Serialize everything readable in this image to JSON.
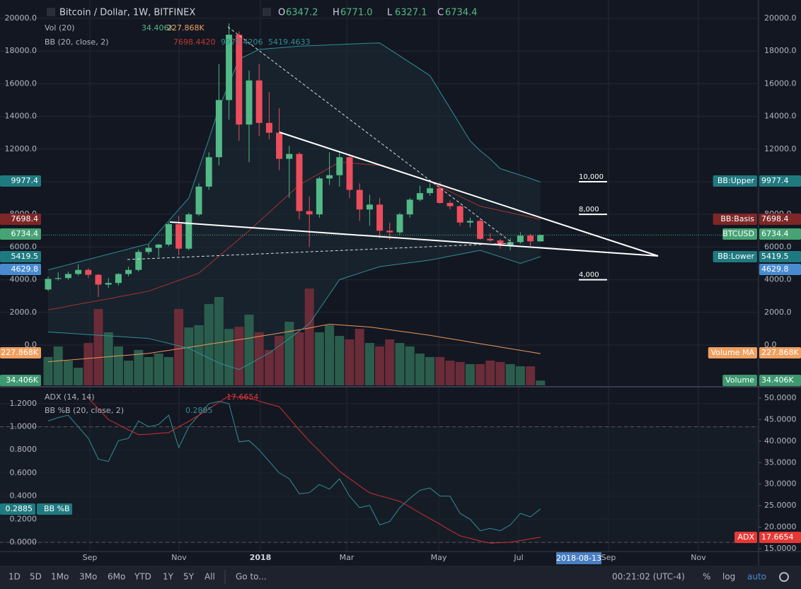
{
  "header": {
    "symbol": "Bitcoin / Dollar, 1W, BITFINEX",
    "ohlc": [
      {
        "key": "O",
        "value": "6347.2"
      },
      {
        "key": "H",
        "value": "6771.0"
      },
      {
        "key": "L",
        "value": "6327.1"
      },
      {
        "key": "C",
        "value": "6734.4"
      }
    ],
    "vol_legend": {
      "name": "Vol (20)",
      "values": [
        "34.406K",
        "227.868K"
      ]
    },
    "bb_legend": {
      "name": "BB (20, close, 2)",
      "values": [
        "7698.4420",
        "9977.4206",
        "5419.4633"
      ]
    }
  },
  "price_pane": {
    "ylim": [
      -2470,
      20780
    ],
    "yticks": [
      {
        "value": 0,
        "label": "0.0"
      },
      {
        "value": 2000,
        "label": "2000.0"
      },
      {
        "value": 4000,
        "label": "4000.0"
      },
      {
        "value": 6000,
        "label": "6000.0"
      },
      {
        "value": 8000,
        "label": "8000.0"
      },
      {
        "value": 10000,
        "label": "10000.0"
      },
      {
        "value": 12000,
        "label": "12000.0"
      },
      {
        "value": 14000,
        "label": "14000.0"
      },
      {
        "value": 16000,
        "label": "16000.0"
      },
      {
        "value": 18000,
        "label": "18000.0"
      },
      {
        "value": 20000,
        "label": "20000.0"
      }
    ],
    "up_color": "#53b987",
    "down_color": "#eb4d5c",
    "candles": [
      [
        3400,
        4200,
        3300,
        4050
      ],
      [
        4050,
        4450,
        3950,
        4100
      ],
      [
        4100,
        4500,
        4000,
        4350
      ],
      [
        4350,
        4950,
        4250,
        4600
      ],
      [
        4600,
        4700,
        4100,
        4300
      ],
      [
        4300,
        4350,
        2950,
        3700
      ],
      [
        3700,
        4100,
        3500,
        3800
      ],
      [
        3800,
        4400,
        3650,
        4350
      ],
      [
        4350,
        4800,
        4200,
        4600
      ],
      [
        4600,
        5850,
        4500,
        5700
      ],
      [
        5700,
        6150,
        5550,
        5950
      ],
      [
        5950,
        6200,
        5400,
        6150
      ],
      [
        6150,
        7500,
        6050,
        7400
      ],
      [
        7400,
        7900,
        5500,
        5900
      ],
      [
        5900,
        8100,
        5800,
        8000
      ],
      [
        8000,
        9900,
        7900,
        9700
      ],
      [
        9700,
        11800,
        9500,
        11500
      ],
      [
        11500,
        17200,
        11000,
        15000
      ],
      [
        15000,
        19700,
        13800,
        19000
      ],
      [
        19000,
        19200,
        12500,
        13500
      ],
      [
        13500,
        16800,
        11200,
        16200
      ],
      [
        16200,
        17200,
        12800,
        13600
      ],
      [
        13600,
        15500,
        12600,
        13000
      ],
      [
        13000,
        14500,
        10700,
        11400
      ],
      [
        11400,
        12200,
        9000,
        11700
      ],
      [
        11700,
        11800,
        7700,
        8200
      ],
      [
        8200,
        9100,
        6000,
        8000
      ],
      [
        8000,
        10300,
        7800,
        10200
      ],
      [
        10200,
        11800,
        9800,
        10400
      ],
      [
        10400,
        11800,
        9700,
        11500
      ],
      [
        11500,
        11700,
        9000,
        9500
      ],
      [
        9500,
        9900,
        7600,
        8300
      ],
      [
        8300,
        9200,
        7300,
        8600
      ],
      [
        8600,
        9000,
        6550,
        7000
      ],
      [
        7000,
        7500,
        6450,
        6900
      ],
      [
        6900,
        8100,
        6750,
        8000
      ],
      [
        8000,
        9000,
        7800,
        8900
      ],
      [
        8900,
        9750,
        8800,
        9300
      ],
      [
        9300,
        9900,
        9150,
        9600
      ],
      [
        9600,
        9990,
        8650,
        8700
      ],
      [
        8700,
        8850,
        8300,
        8500
      ],
      [
        8500,
        8550,
        7300,
        7500
      ],
      [
        7500,
        7800,
        7200,
        7600
      ],
      [
        7600,
        7700,
        6450,
        6500
      ],
      [
        6500,
        6850,
        6300,
        6400
      ],
      [
        6400,
        6500,
        5900,
        6100
      ],
      [
        6100,
        6550,
        5800,
        6300
      ],
      [
        6300,
        6900,
        6200,
        6700
      ],
      [
        6700,
        6800,
        6050,
        6350
      ],
      [
        6347.2,
        6771.0,
        6327.1,
        6734.4
      ]
    ],
    "bb_upper": {
      "color": "#2f8f96",
      "values": [
        4600,
        4760,
        4920,
        5080,
        5240,
        5400,
        5560,
        5720,
        5880,
        6040,
        6200,
        6900,
        7600,
        8300,
        9000,
        10800,
        12600,
        14500,
        16000,
        17500,
        17800,
        18100,
        18150,
        18200,
        18250,
        18300,
        18330,
        18350,
        18380,
        18400,
        18430,
        18450,
        18480,
        18500,
        18100,
        17700,
        17300,
        16900,
        16500,
        15500,
        14500,
        13500,
        12500,
        11900,
        11400,
        10800,
        10600,
        10400,
        10200,
        9977.4206
      ]
    },
    "bb_basis": {
      "color": "#a83232",
      "values": [
        2150,
        2260,
        2380,
        2500,
        2610,
        2720,
        2830,
        2950,
        3060,
        3180,
        3300,
        3520,
        3740,
        3960,
        4180,
        4400,
        4920,
        5440,
        5960,
        6480,
        7000,
        7560,
        8120,
        8680,
        9240,
        9800,
        10150,
        10500,
        10850,
        11200,
        11150,
        11100,
        11050,
        11000,
        10800,
        10600,
        10400,
        10200,
        10000,
        9700,
        9400,
        9100,
        8800,
        8500,
        8370,
        8230,
        8100,
        7970,
        7830,
        7698.442
      ]
    },
    "bb_lower": {
      "color": "#2f8f96",
      "values": [
        800,
        760,
        720,
        680,
        640,
        600,
        560,
        520,
        480,
        440,
        400,
        250,
        100,
        -50,
        -200,
        -500,
        -800,
        -1100,
        -1300,
        -1500,
        -1170,
        -830,
        -500,
        -50,
        400,
        850,
        1300,
        2200,
        3100,
        4000,
        4200,
        4400,
        4600,
        4800,
        4880,
        4960,
        5040,
        5120,
        5200,
        5320,
        5440,
        5560,
        5680,
        5800,
        5600,
        5400,
        5200,
        5000,
        5200,
        5419.4633
      ]
    },
    "volume": {
      "ylim": [
        0,
        2733
      ],
      "up_color": "#2b5d4c",
      "down_color": "#6a2c38",
      "values": [
        204,
        280,
        178,
        127,
        305,
        550,
        382,
        280,
        178,
        255,
        204,
        229,
        204,
        550,
        417,
        433,
        585,
        636,
        407,
        422,
        509,
        382,
        255,
        356,
        458,
        382,
        697,
        382,
        433,
        356,
        331,
        407,
        305,
        280,
        331,
        305,
        280,
        229,
        204,
        204,
        178,
        168,
        153,
        153,
        178,
        168,
        153,
        137,
        137,
        34.406
      ],
      "ma": {
        "color": "#e8975a",
        "values": [
          170,
          176,
          182,
          188,
          194,
          200,
          206,
          212,
          218,
          224,
          230,
          241,
          252,
          263,
          274,
          285,
          296,
          307,
          318,
          329,
          340,
          352,
          364,
          376,
          388,
          400,
          413,
          427,
          440,
          435,
          430,
          425,
          420,
          410,
          400,
          390,
          380,
          370,
          360,
          348,
          336,
          324,
          312,
          300,
          288,
          276,
          264,
          252,
          240,
          227.868
        ]
      }
    },
    "left_badges": [
      {
        "value": "9977.4",
        "color": "#1f7a80"
      },
      {
        "value": "7698.4",
        "color": "#7d2727"
      },
      {
        "value": "6734.4",
        "color": "#47a374"
      },
      {
        "value": "5419.5",
        "color": "#1f7a80"
      },
      {
        "value": "4629.8",
        "color": "#4a8bd0"
      },
      {
        "value": "227.868K",
        "color": "#f0a060"
      },
      {
        "value": "34.406K",
        "color": "#3d9970"
      }
    ],
    "right_badges": [
      {
        "label": "BB:Upper",
        "value": "9977.4",
        "color": "#1f7a80"
      },
      {
        "label": "BB:Basis",
        "value": "7698.4",
        "color": "#7d2727"
      },
      {
        "label": "BTCUSD",
        "value": "6734.4",
        "color": "#47a374"
      },
      {
        "label": "BB:Lower",
        "value": "5419.5",
        "color": "#1f7a80"
      },
      {
        "value": "4629.8",
        "color": "#4a8bd0"
      },
      {
        "label": "Volume MA",
        "value": "227.868K",
        "color": "#f0a060"
      },
      {
        "label": "Volume",
        "value": "34.406K",
        "color": "#3d9970"
      }
    ],
    "levels": [
      {
        "label": "10,000",
        "value": 10000
      },
      {
        "label": "8,000",
        "value": 8000
      },
      {
        "label": "4,000",
        "value": 4000
      }
    ]
  },
  "lower_pane": {
    "adx_legend": {
      "name": "ADX (14, 14)",
      "values": [
        "17.6654"
      ]
    },
    "bbp_legend": {
      "name": "BB %B (20, close, 2)",
      "values": [
        "0.2885"
      ]
    },
    "ylim": [
      -0.08,
      1.334
    ],
    "yticks": [
      {
        "value": 0,
        "label": "0.0000"
      },
      {
        "value": 0.2,
        "label": "0.2000"
      },
      {
        "value": 0.4,
        "label": "0.4000"
      },
      {
        "value": 0.6,
        "label": "0.6000"
      },
      {
        "value": 0.8,
        "label": "0.8000"
      },
      {
        "value": 1,
        "label": "1.0000"
      },
      {
        "value": 1.2,
        "label": "1.2000"
      }
    ],
    "y2lim": [
      14.35,
      52.29
    ],
    "y2ticks": [
      {
        "value": 15,
        "label": "15.0000"
      },
      {
        "value": 20,
        "label": "20.0000"
      },
      {
        "value": 25,
        "label": "25.0000"
      },
      {
        "value": 30,
        "label": "30.0000"
      },
      {
        "value": 35,
        "label": "35.0000"
      },
      {
        "value": 40,
        "label": "40.0000"
      },
      {
        "value": 45,
        "label": "45.0000"
      },
      {
        "value": 50,
        "label": "50.0000"
      }
    ],
    "bands": [
      1,
      0
    ],
    "adx": {
      "color": "#d32f2f",
      "values": [
        null,
        null,
        null,
        null,
        50,
        47.5,
        45,
        43.8,
        42.6,
        41.5,
        41.6,
        41.8,
        42,
        43.3,
        44.6,
        46,
        47.5,
        49,
        50.5,
        50.2,
        50,
        49.3,
        48.6,
        48,
        45.3,
        42.6,
        40,
        37.7,
        35.3,
        33,
        31.3,
        29.6,
        28,
        27.3,
        26.7,
        26,
        24.7,
        23.3,
        22,
        20.7,
        19.3,
        18,
        17.4,
        16.8,
        16.3,
        16.4,
        16.5,
        16.9,
        17.3,
        17.6654
      ]
    },
    "bbp": {
      "color": "#2f8f96",
      "values": [
        1.05,
        1.08,
        1.1,
        1.0,
        0.9,
        0.72,
        0.7,
        0.88,
        0.9,
        1.05,
        1.0,
        1.02,
        1.1,
        0.82,
        1.0,
        1.1,
        1.2,
        1.22,
        1.2,
        0.87,
        0.88,
        0.8,
        0.7,
        0.6,
        0.55,
        0.42,
        0.43,
        0.5,
        0.46,
        0.55,
        0.4,
        0.3,
        0.32,
        0.15,
        0.18,
        0.3,
        0.38,
        0.45,
        0.47,
        0.4,
        0.4,
        0.25,
        0.2,
        0.1,
        0.12,
        0.1,
        0.15,
        0.25,
        0.22,
        0.2885
      ]
    },
    "left_badge": {
      "value": "0.2885",
      "label": "BB %B",
      "color": "#1f7a80"
    },
    "right_badge": {
      "label": "ADX",
      "value": "17.6654",
      "color": "#e53935"
    }
  },
  "x_axis": {
    "labels": [
      "Sep",
      "Nov",
      "2018",
      "Mar",
      "May",
      "Jul",
      "Sep",
      "Nov"
    ],
    "cursor_date": "2018-08-13"
  },
  "toolbar": {
    "ranges": [
      "1D",
      "5D",
      "1Mo",
      "3Mo",
      "6Mo",
      "YTD",
      "1Y",
      "5Y",
      "All"
    ],
    "goto": "Go to...",
    "clock": "00:21:02 (UTC-4)",
    "options": [
      "%",
      "log",
      "auto"
    ]
  }
}
